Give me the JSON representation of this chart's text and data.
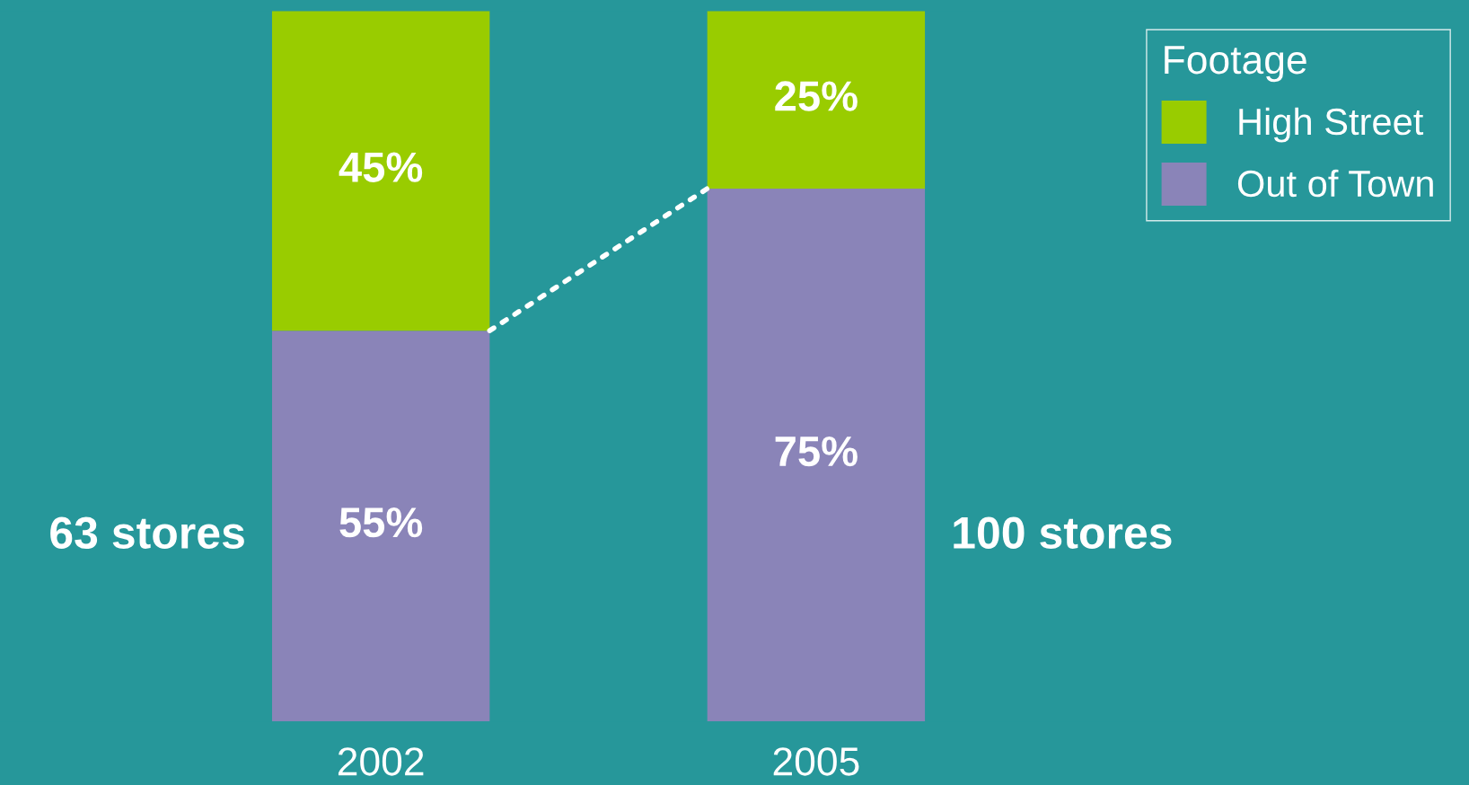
{
  "chart_data": {
    "type": "bar",
    "stacked": true,
    "categories": [
      "2002",
      "2005"
    ],
    "series": [
      {
        "name": "Out of Town",
        "color": "#8a84b8",
        "values": [
          55,
          75
        ],
        "value_labels": [
          "55%",
          "75%"
        ]
      },
      {
        "name": "High Street",
        "color": "#99cc00",
        "values": [
          45,
          25
        ],
        "value_labels": [
          "45%",
          "25%"
        ]
      }
    ],
    "legend": "top right",
    "legend_title": "Footage",
    "tick_labels": "x",
    "grid": false,
    "annotations": [
      "63 stores",
      "100 stores"
    ]
  }
}
